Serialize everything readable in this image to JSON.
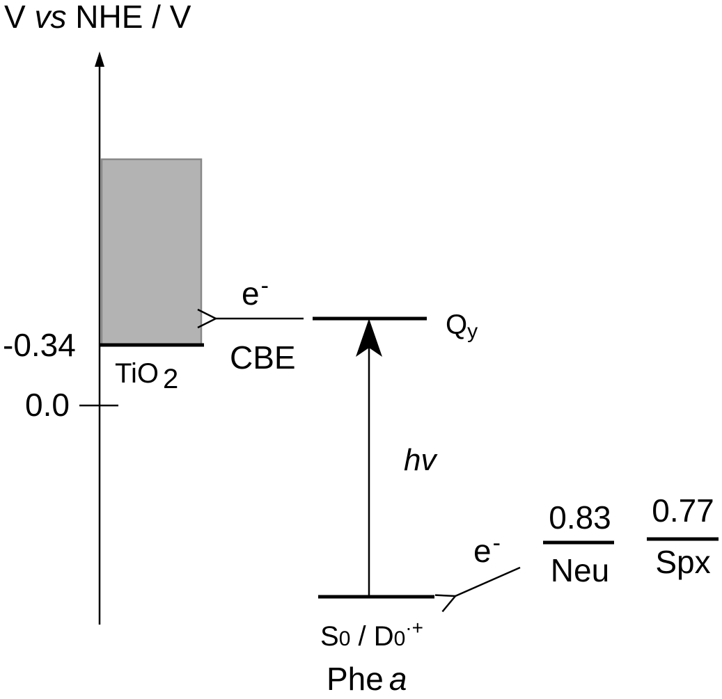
{
  "axis": {
    "label_prefix": "V ",
    "label_italic": "vs",
    "label_suffix": " NHE / V",
    "ticks": [
      "-0.34",
      "0.0"
    ]
  },
  "tio2": {
    "base": "TiO",
    "subscript": "2",
    "band_color": "#b3b3b3",
    "band_edge": "CBE"
  },
  "electron": {
    "base": "e",
    "charge": "-"
  },
  "levels": {
    "qy_base": "Q",
    "qy_sub": "y",
    "ground_s": "S",
    "ground_s_sub": "0",
    "ground_sep": " / D",
    "ground_d_sub": "0",
    "ground_d_sup": "·+",
    "photon": "hv"
  },
  "molecule": {
    "name": "Phe",
    "italic": "a"
  },
  "donors": [
    {
      "value": "0.83",
      "name": "Neu"
    },
    {
      "value": "0.77",
      "name": "Spx"
    }
  ]
}
